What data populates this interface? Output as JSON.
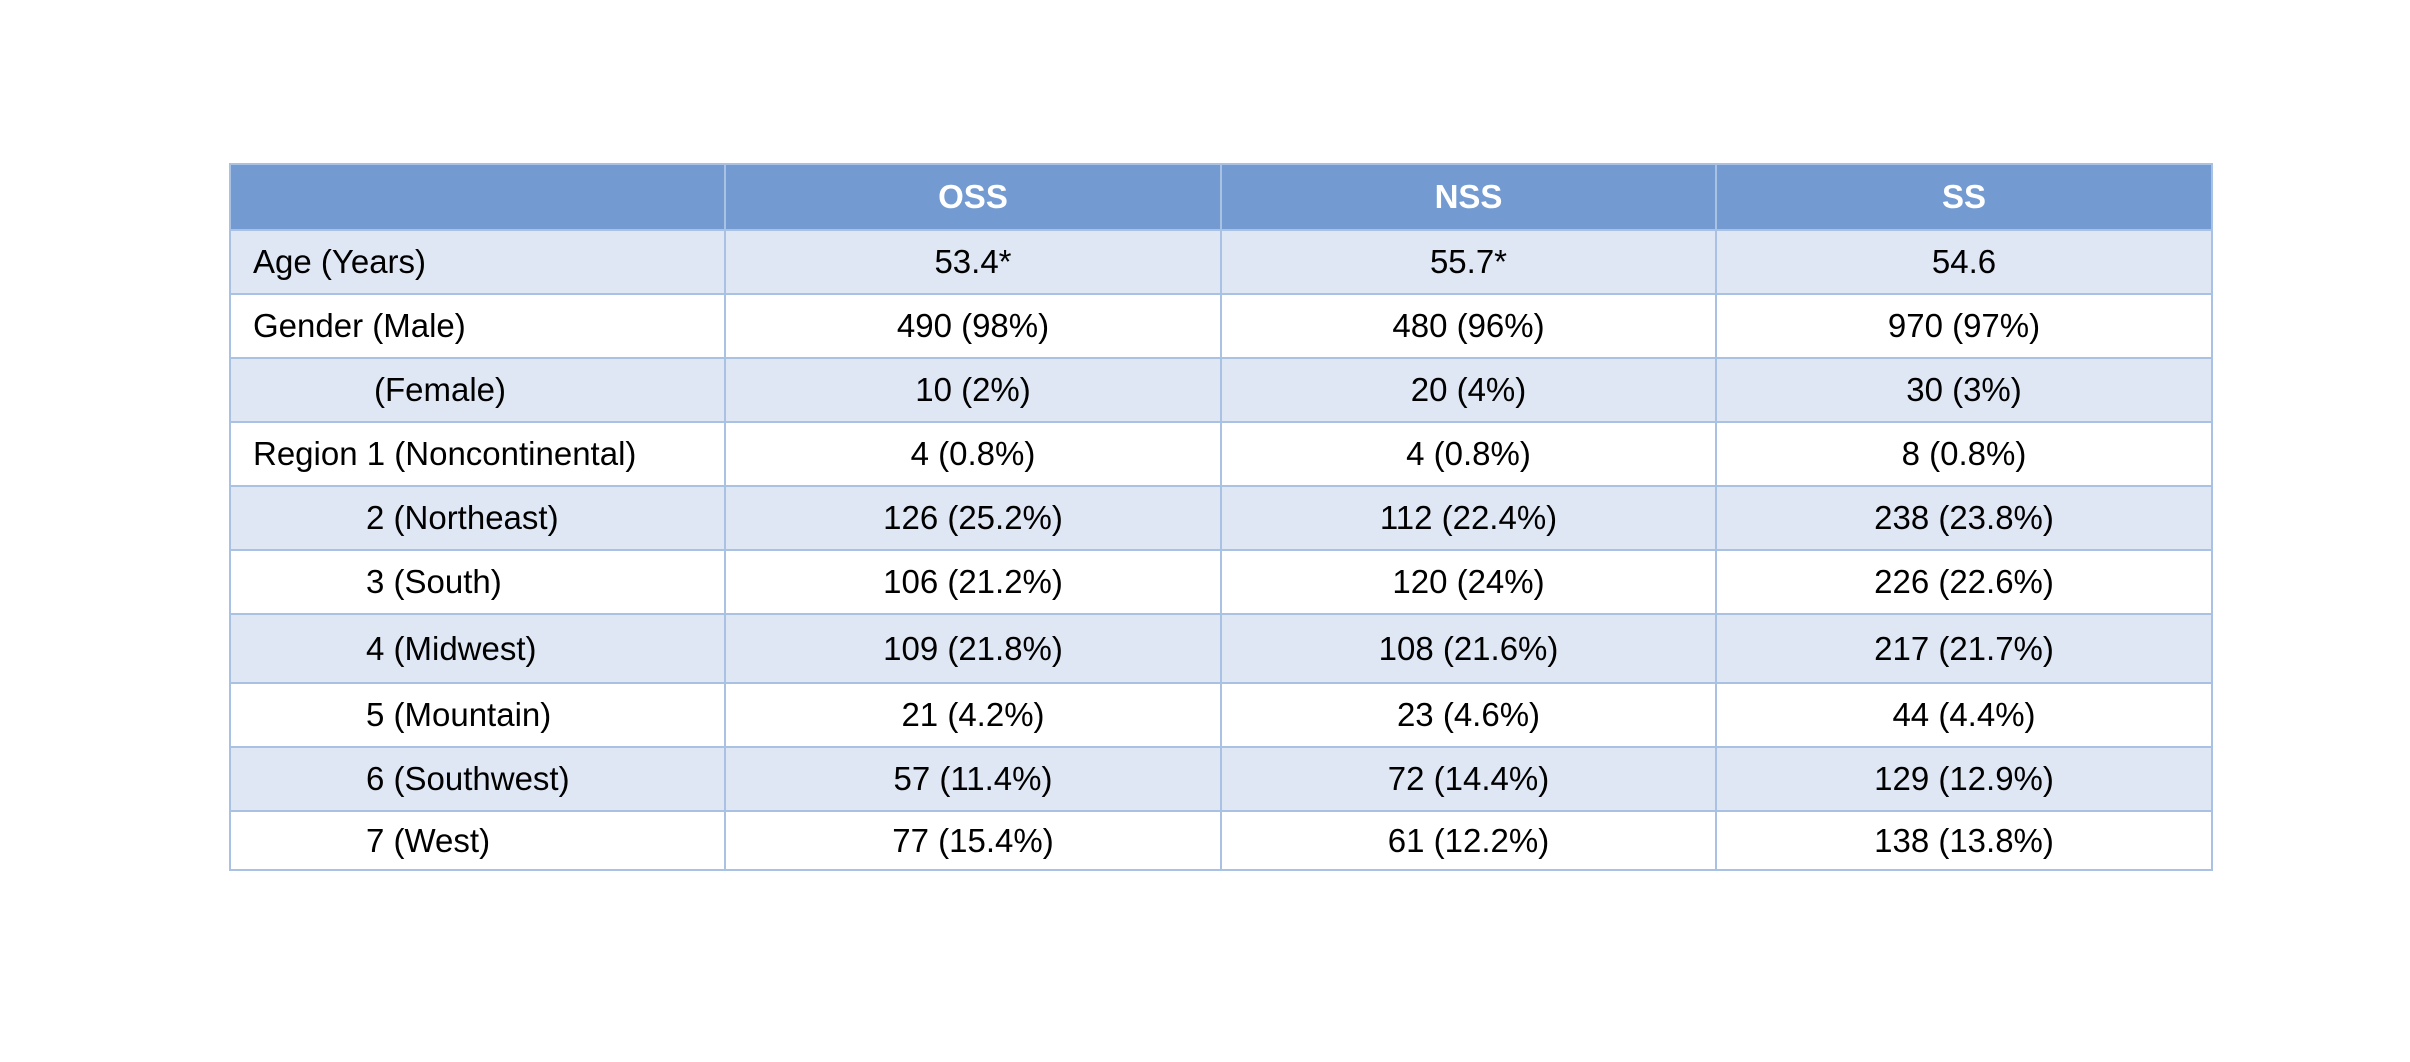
{
  "table": {
    "headers": [
      "",
      "OSS",
      "NSS",
      "SS"
    ],
    "rows": [
      {
        "label": "Age (Years)",
        "values": [
          "53.4*",
          "55.7*",
          "54.6"
        ]
      },
      {
        "label": "Gender (Male)",
        "values": [
          "490 (98%)",
          "480 (96%)",
          "970 (97%)"
        ]
      },
      {
        "label": "(Female)",
        "values": [
          "10 (2%)",
          "20 (4%)",
          "30 (3%)"
        ]
      },
      {
        "label": "Region 1 (Noncontinental)",
        "values": [
          "4 (0.8%)",
          "4 (0.8%)",
          "8 (0.8%)"
        ]
      },
      {
        "label": "2 (Northeast)",
        "values": [
          "126 (25.2%)",
          "112 (22.4%)",
          "238 (23.8%)"
        ]
      },
      {
        "label": "3 (South)",
        "values": [
          "106 (21.2%)",
          "120 (24%)",
          "226 (22.6%)"
        ]
      },
      {
        "label": "4 (Midwest)",
        "values": [
          "109 (21.8%)",
          "108 (21.6%)",
          "217 (21.7%)"
        ]
      },
      {
        "label": "5 (Mountain)",
        "values": [
          "21 (4.2%)",
          "23 (4.6%)",
          "44 (4.4%)"
        ]
      },
      {
        "label": "6 (Southwest)",
        "values": [
          "57 (11.4%)",
          "72 (14.4%)",
          "129 (12.9%)"
        ]
      },
      {
        "label": "7 (West)",
        "values": [
          "77 (15.4%)",
          "61 (12.2%)",
          "138 (13.8%)"
        ]
      }
    ]
  },
  "colors": {
    "header_bg": "#739bd2",
    "band_bg": "#dfe7f4",
    "border": "#a9c1e3"
  }
}
